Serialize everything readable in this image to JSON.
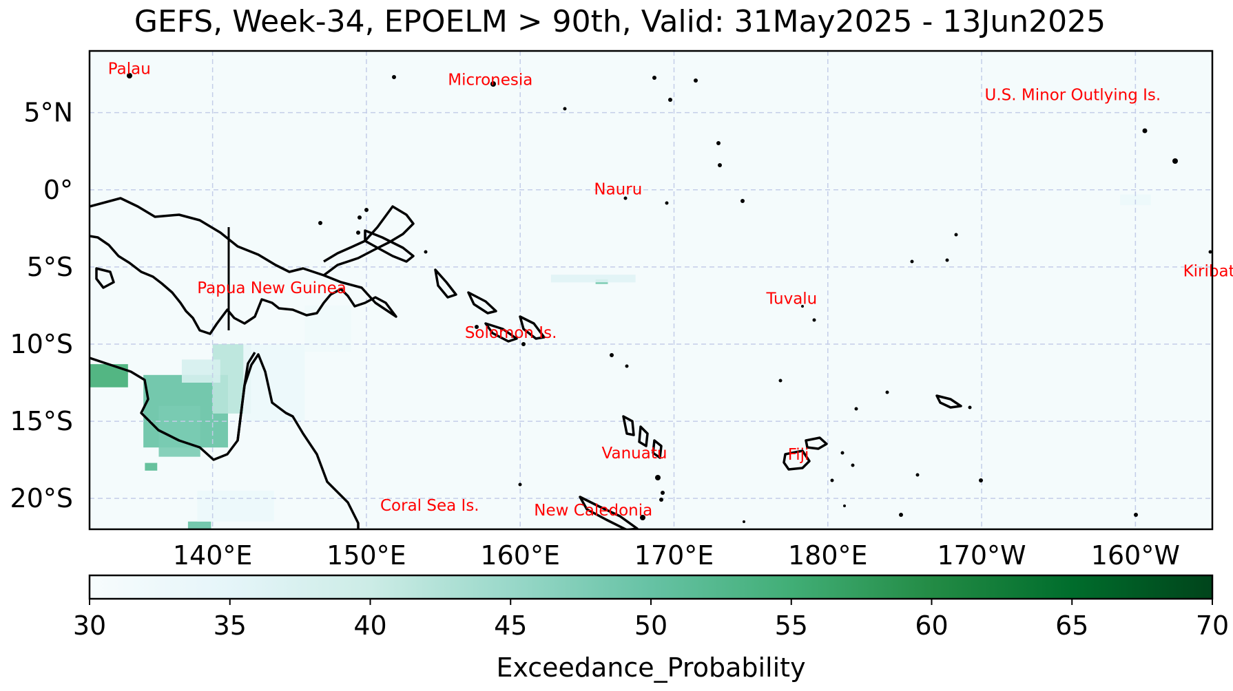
{
  "title": "GEFS, Week-34, EPOELM > 90th, Valid: 31May2025 - 13Jun2025",
  "map": {
    "lon_range": [
      131,
      204
    ],
    "lat_range": [
      -22,
      9
    ],
    "lat_ticks": [
      {
        "value": 5,
        "label": "5°N"
      },
      {
        "value": 0,
        "label": "0°"
      },
      {
        "value": -5,
        "label": "5°S"
      },
      {
        "value": -10,
        "label": "10°S"
      },
      {
        "value": -15,
        "label": "15°S"
      },
      {
        "value": -20,
        "label": "20°S"
      }
    ],
    "lon_ticks": [
      {
        "value": 139,
        "label": "140°E"
      },
      {
        "value": 149,
        "label": "150°E"
      },
      {
        "value": 159,
        "label": "160°E"
      },
      {
        "value": 169,
        "label": "170°E"
      },
      {
        "value": 179,
        "label": "180°E"
      },
      {
        "value": 189,
        "label": "170°W"
      },
      {
        "value": 199,
        "label": "160°W"
      }
    ],
    "gridlines": true,
    "labels": [
      {
        "name": "Palau",
        "lon": 132.2,
        "lat": 7.5
      },
      {
        "name": "Micronesia",
        "lon": 154.3,
        "lat": 6.8
      },
      {
        "name": "U.S. Minor Outlying Is.",
        "lon": 189.2,
        "lat": 5.8
      },
      {
        "name": "Nauru",
        "lon": 163.8,
        "lat": -0.3
      },
      {
        "name": "Kiribati",
        "lon": 202.1,
        "lat": -5.6
      },
      {
        "name": "Papua New Guinea",
        "lon": 138.0,
        "lat": -6.7
      },
      {
        "name": "Tuvalu",
        "lon": 175.0,
        "lat": -7.4
      },
      {
        "name": "Solomon Is.",
        "lon": 155.4,
        "lat": -9.6
      },
      {
        "name": "Vanuatu",
        "lon": 164.3,
        "lat": -17.4
      },
      {
        "name": "Fiji",
        "lon": 176.4,
        "lat": -17.5
      },
      {
        "name": "Coral Sea Is.",
        "lon": 149.9,
        "lat": -20.8
      },
      {
        "name": "New Caledonia",
        "lon": 159.9,
        "lat": -21.1
      }
    ],
    "probability_patches": [
      {
        "lon0": 131.0,
        "lat0": -11.3,
        "lon1": 133.5,
        "lat1": -12.8,
        "value": 55
      },
      {
        "lon0": 134.5,
        "lat0": -12.0,
        "lon1": 140.0,
        "lat1": -16.7,
        "value": 50
      },
      {
        "lon0": 135.5,
        "lat0": -14.0,
        "lon1": 138.2,
        "lat1": -17.3,
        "value": 48
      },
      {
        "lon0": 139.0,
        "lat0": -10.0,
        "lon1": 141.5,
        "lat1": -14.5,
        "value": 42
      },
      {
        "lon0": 137.0,
        "lat0": -11.0,
        "lon1": 139.5,
        "lat1": -12.5,
        "value": 38
      },
      {
        "lon0": 134.6,
        "lat0": -17.7,
        "lon1": 135.4,
        "lat1": -18.2,
        "value": 52
      },
      {
        "lon0": 137.4,
        "lat0": -21.5,
        "lon1": 138.9,
        "lat1": -22.0,
        "value": 50
      },
      {
        "lon0": 138.0,
        "lat0": -19.5,
        "lon1": 143.0,
        "lat1": -21.5,
        "value": 33
      },
      {
        "lon0": 141.0,
        "lat0": -10.0,
        "lon1": 145.0,
        "lat1": -15.0,
        "value": 33
      },
      {
        "lon0": 145.0,
        "lat0": -7.5,
        "lon1": 148.0,
        "lat1": -10.5,
        "value": 32
      },
      {
        "lon0": 163.9,
        "lat0": -5.8,
        "lon1": 164.7,
        "lat1": -6.1,
        "value": 50
      },
      {
        "lon0": 161.0,
        "lat0": -5.5,
        "lon1": 166.5,
        "lat1": -6.0,
        "value": 36
      },
      {
        "lon0": 198.0,
        "lat0": -0.3,
        "lon1": 200.0,
        "lat1": -1.0,
        "value": 33
      }
    ],
    "coastline_color": "#000000",
    "label_color": "#ff0000"
  },
  "colorbar": {
    "ticks": [
      30,
      35,
      40,
      45,
      50,
      55,
      60,
      65,
      70
    ],
    "range": [
      30,
      70
    ],
    "label": "Exceedance_Probability",
    "colormap": [
      "#f7fcfd",
      "#e5f5f9",
      "#ccece6",
      "#99d8c9",
      "#66c2a4",
      "#41ae76",
      "#238b45",
      "#006d2c",
      "#00441b"
    ]
  }
}
